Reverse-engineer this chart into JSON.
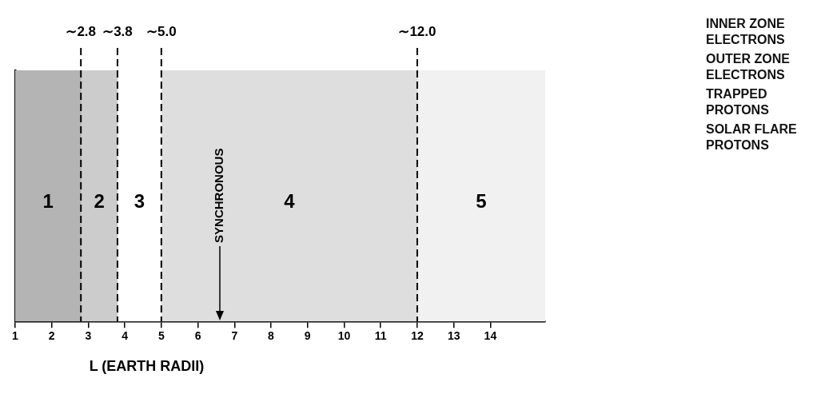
{
  "chart_data": {
    "type": "bar",
    "orientation": "horizontal",
    "xlabel": "L (EARTH RADII)",
    "xlim": [
      1,
      15.5
    ],
    "xticks": [
      1,
      2,
      3,
      4,
      5,
      6,
      7,
      8,
      9,
      10,
      11,
      12,
      13,
      14
    ],
    "categories": [
      null
    ],
    "series": [
      {
        "name": "1",
        "color": "#b4b4b4",
        "base": [
          1
        ],
        "values": [
          1.8
        ]
      },
      {
        "name": "2",
        "color": "#cccccc",
        "base": [
          2.8
        ],
        "values": [
          1.0
        ]
      },
      {
        "name": "3",
        "color": "#ffffff",
        "base": [
          3.8
        ],
        "values": [
          1.2
        ]
      },
      {
        "name": "4",
        "color": "#dedede",
        "base": [
          5.0
        ],
        "values": [
          7.0
        ]
      },
      {
        "name": "5",
        "color": "#f1f1f1",
        "base": [
          12.0
        ],
        "values": [
          3.5
        ]
      }
    ],
    "ref_lines": [
      {
        "axis": "x",
        "value": 2.8,
        "label": "∼2.8",
        "line_style": "dashed"
      },
      {
        "axis": "x",
        "value": 3.8,
        "label": "∼3.8",
        "line_style": "dashed"
      },
      {
        "axis": "x",
        "value": 5.0,
        "label": "∼5.0",
        "line_style": "dashed"
      },
      {
        "axis": "x",
        "value": 12.0,
        "label": "∼12.0",
        "line_style": "dashed"
      },
      {
        "axis": "x",
        "value": 6.6,
        "label": "SYNCHRONOUS",
        "line_style": "solid"
      }
    ],
    "annotations": [
      "INNER ZONE\nELECTRONS",
      "OUTER ZONE\nELECTRONS",
      "TRAPPED\nPROTONS",
      "SOLAR FLARE\nPROTONS"
    ]
  }
}
